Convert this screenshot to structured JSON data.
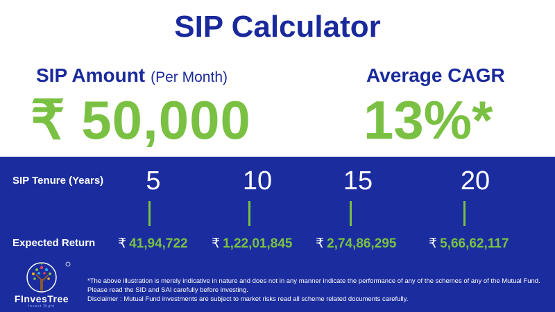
{
  "title": "SIP Calculator",
  "amount": {
    "label": "SIP Amount",
    "sublabel": "(Per Month)",
    "value": "₹ 50,000"
  },
  "cagr": {
    "label": "Average CAGR",
    "value": "13%*"
  },
  "table": {
    "tenure_label": "SIP Tenure (Years)",
    "return_label": "Expected Return",
    "currency": "₹",
    "years": [
      "5",
      "10",
      "15",
      "20"
    ],
    "returns": [
      "41,94,722",
      "1,22,01,845",
      "2,74,86,295",
      "5,66,62,117"
    ]
  },
  "brand": {
    "name": "FInvesTree",
    "tagline": "Invest Right"
  },
  "disclaimer": {
    "line1": "*The above illustration is merely indicative in nature and does not in any manner indicate the performance of any of the schemes of any of the Mutual Fund. Please read the SID and SAI carefully before investing.",
    "line2": "Disclaimer : Mutual Fund investments are subject to market risks read all scheme related documents carefully."
  },
  "colors": {
    "navy": "#1a2a9c",
    "band": "#1b2d9e",
    "green": "#7ac143"
  }
}
